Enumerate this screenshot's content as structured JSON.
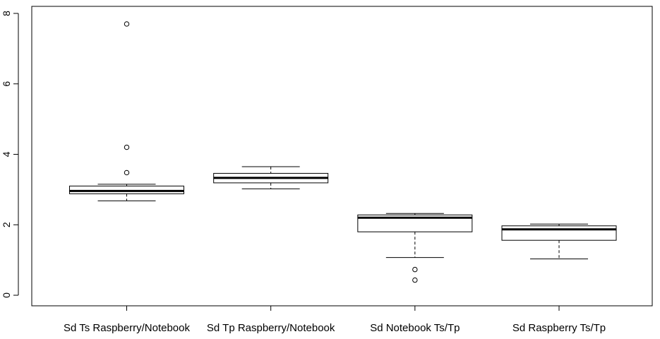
{
  "chart_data": {
    "type": "boxplot",
    "title": "",
    "xlabel": "",
    "ylabel": "",
    "ylim": [
      -0.3,
      8.2
    ],
    "yticks": [
      "0",
      "2",
      "4",
      "6",
      "8"
    ],
    "grid": false,
    "categories": [
      "Sd Ts Raspberry/Notebook",
      "Sd Tp Raspberry/Notebook",
      "Sd Notebook Ts/Tp",
      "Sd Raspberry Ts/Tp"
    ],
    "boxes": [
      {
        "whisker_low": 2.68,
        "q1": 2.88,
        "median": 2.96,
        "q3": 3.1,
        "whisker_high": 3.15,
        "outliers": [
          3.48,
          4.2,
          7.7
        ]
      },
      {
        "whisker_low": 3.02,
        "q1": 3.19,
        "median": 3.33,
        "q3": 3.46,
        "whisker_high": 3.65,
        "outliers": []
      },
      {
        "whisker_low": 1.07,
        "q1": 1.8,
        "median": 2.2,
        "q3": 2.28,
        "whisker_high": 2.32,
        "outliers": [
          0.73,
          0.43
        ]
      },
      {
        "whisker_low": 1.03,
        "q1": 1.56,
        "median": 1.87,
        "q3": 1.97,
        "whisker_high": 2.02,
        "outliers": []
      }
    ]
  }
}
